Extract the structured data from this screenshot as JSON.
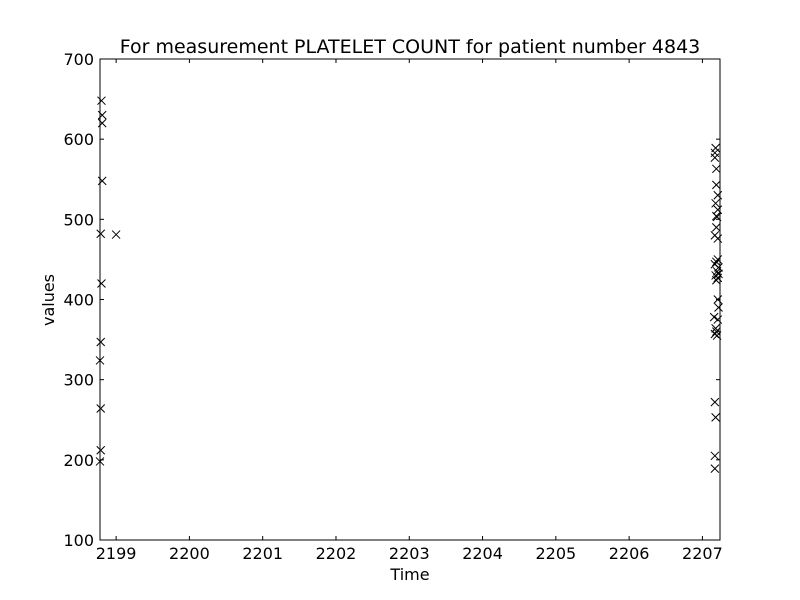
{
  "chart_data": {
    "type": "scatter",
    "title": "For measurement PLATELET COUNT for patient number 4843",
    "xlabel": "Time",
    "ylabel": "values",
    "xlim": [
      2198.78,
      2207.24
    ],
    "ylim": [
      100,
      700
    ],
    "xticks": [
      2199,
      2200,
      2201,
      2202,
      2203,
      2204,
      2205,
      2206,
      2207
    ],
    "yticks": [
      100,
      200,
      300,
      400,
      500,
      600,
      700
    ],
    "grid": false,
    "marker": "x",
    "color": "#000000",
    "series": [
      {
        "points": [
          {
            "x": 2198.8,
            "y": 648
          },
          {
            "x": 2198.81,
            "y": 630
          },
          {
            "x": 2198.81,
            "y": 620
          },
          {
            "x": 2198.81,
            "y": 548
          },
          {
            "x": 2198.79,
            "y": 482
          },
          {
            "x": 2199.0,
            "y": 481
          },
          {
            "x": 2198.8,
            "y": 420
          },
          {
            "x": 2198.79,
            "y": 347
          },
          {
            "x": 2198.78,
            "y": 324
          },
          {
            "x": 2198.79,
            "y": 264
          },
          {
            "x": 2198.79,
            "y": 212
          },
          {
            "x": 2198.78,
            "y": 198
          },
          {
            "x": 2207.18,
            "y": 589
          },
          {
            "x": 2207.17,
            "y": 583
          },
          {
            "x": 2207.17,
            "y": 577
          },
          {
            "x": 2207.19,
            "y": 563
          },
          {
            "x": 2207.19,
            "y": 543
          },
          {
            "x": 2207.21,
            "y": 530
          },
          {
            "x": 2207.18,
            "y": 520
          },
          {
            "x": 2207.21,
            "y": 512
          },
          {
            "x": 2207.19,
            "y": 504
          },
          {
            "x": 2207.2,
            "y": 503
          },
          {
            "x": 2207.19,
            "y": 490
          },
          {
            "x": 2207.17,
            "y": 480
          },
          {
            "x": 2207.21,
            "y": 476
          },
          {
            "x": 2207.21,
            "y": 450
          },
          {
            "x": 2207.19,
            "y": 447
          },
          {
            "x": 2207.17,
            "y": 444
          },
          {
            "x": 2207.22,
            "y": 440
          },
          {
            "x": 2207.2,
            "y": 435
          },
          {
            "x": 2207.22,
            "y": 432
          },
          {
            "x": 2207.18,
            "y": 430
          },
          {
            "x": 2207.21,
            "y": 427
          },
          {
            "x": 2207.19,
            "y": 424
          },
          {
            "x": 2207.21,
            "y": 400
          },
          {
            "x": 2207.22,
            "y": 390
          },
          {
            "x": 2207.16,
            "y": 378
          },
          {
            "x": 2207.21,
            "y": 375
          },
          {
            "x": 2207.18,
            "y": 364
          },
          {
            "x": 2207.19,
            "y": 360
          },
          {
            "x": 2207.17,
            "y": 357
          },
          {
            "x": 2207.2,
            "y": 355
          },
          {
            "x": 2207.17,
            "y": 272
          },
          {
            "x": 2207.18,
            "y": 253
          },
          {
            "x": 2207.17,
            "y": 205
          },
          {
            "x": 2207.17,
            "y": 189
          }
        ]
      }
    ]
  }
}
